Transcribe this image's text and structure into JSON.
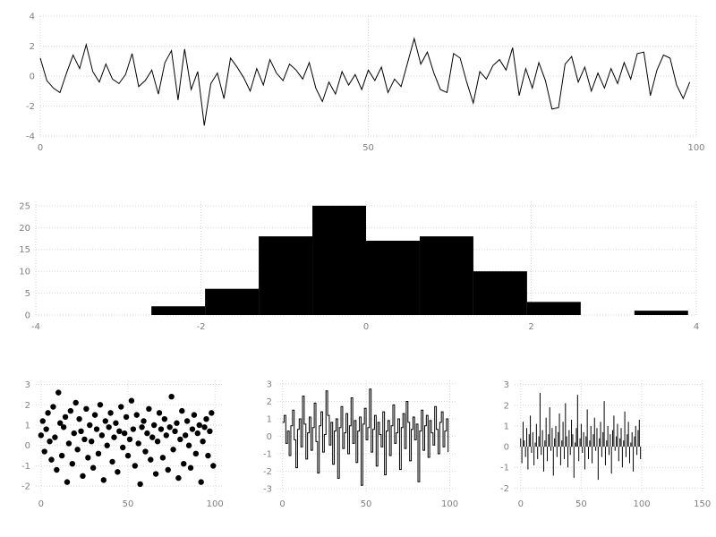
{
  "figure": {
    "background": "#ffffff",
    "grid_color": "#d6d6d6",
    "tick_color": "#7f7f7f",
    "series_color": "#000000"
  },
  "chart_data": [
    {
      "id": "timeseries",
      "type": "line",
      "title": "",
      "xlabel": "",
      "ylabel": "",
      "x_mode": "index",
      "xlim": [
        0,
        100
      ],
      "ylim": [
        -4,
        4
      ],
      "xticks": [
        0,
        50,
        100
      ],
      "yticks": [
        -4,
        -2,
        0,
        2,
        4
      ],
      "grid": true,
      "values": [
        1.2,
        -0.3,
        -0.8,
        -1.1,
        0.2,
        1.4,
        0.5,
        2.1,
        0.3,
        -0.4,
        0.8,
        -0.2,
        -0.5,
        0.1,
        1.5,
        -0.7,
        -0.3,
        0.4,
        -1.2,
        0.9,
        1.7,
        -1.6,
        1.8,
        -0.9,
        0.3,
        -3.3,
        -0.5,
        0.2,
        -1.5,
        1.2,
        0.6,
        -0.1,
        -1.0,
        0.5,
        -0.6,
        1.1,
        0.2,
        -0.3,
        0.8,
        0.4,
        -0.2,
        0.9,
        -0.8,
        -1.7,
        -0.4,
        -1.2,
        0.3,
        -0.6,
        0.1,
        -0.9,
        0.4,
        -0.3,
        0.6,
        -1.1,
        -0.2,
        -0.7,
        0.9,
        2.5,
        0.8,
        1.6,
        0.2,
        -0.9,
        -1.1,
        1.5,
        1.2,
        -0.4,
        -1.8,
        0.3,
        -0.2,
        0.7,
        1.1,
        0.4,
        1.9,
        -1.3,
        0.5,
        -0.8,
        0.9,
        -0.3,
        -2.2,
        -2.1,
        0.8,
        1.3,
        -0.4,
        0.6,
        -1.0,
        0.2,
        -0.8,
        0.5,
        -0.5,
        0.9,
        -0.2,
        1.5,
        1.6,
        -1.3,
        0.4,
        1.4,
        1.2,
        -0.6,
        -1.5,
        -0.4
      ]
    },
    {
      "id": "histogram",
      "type": "bar",
      "title": "",
      "xlabel": "",
      "ylabel": "",
      "xlim": [
        -4,
        4
      ],
      "ylim": [
        0,
        26
      ],
      "xticks": [
        -4,
        -2,
        0,
        2,
        4
      ],
      "yticks": [
        0,
        5,
        10,
        15,
        20,
        25
      ],
      "grid": true,
      "bin_edges": [
        -2.6,
        -1.95,
        -1.3,
        -0.65,
        0,
        0.65,
        1.3,
        1.95,
        2.6,
        3.25,
        3.9
      ],
      "counts": [
        2,
        6,
        18,
        25,
        17,
        18,
        10,
        3,
        0,
        1
      ]
    },
    {
      "id": "scatter",
      "type": "scatter",
      "title": "",
      "xlabel": "",
      "ylabel": "",
      "x_mode": "index",
      "xlim": [
        -3,
        104
      ],
      "ylim": [
        -2.3,
        3.2
      ],
      "xticks": [
        0,
        50,
        100
      ],
      "yticks": [
        -2,
        -1,
        0,
        1,
        2,
        3
      ],
      "grid": true,
      "values": [
        0.5,
        1.2,
        -0.3,
        0.8,
        1.6,
        0.2,
        -0.7,
        1.9,
        0.4,
        -1.2,
        2.6,
        1.1,
        -0.5,
        0.9,
        1.4,
        -1.8,
        0.1,
        1.7,
        -0.9,
        0.6,
        2.1,
        -0.2,
        1.3,
        0.7,
        -1.5,
        0.3,
        1.8,
        -0.6,
        1.0,
        0.2,
        -1.1,
        1.5,
        0.8,
        -0.4,
        2.0,
        0.5,
        -1.7,
        1.2,
        0.0,
        0.9,
        1.6,
        -0.8,
        0.4,
        1.1,
        -1.3,
        0.7,
        1.9,
        -0.1,
        0.6,
        1.4,
        -0.5,
        0.3,
        2.2,
        0.8,
        -1.0,
        1.5,
        0.1,
        -1.9,
        0.9,
        1.2,
        -0.3,
        0.6,
        1.8,
        -0.7,
        0.4,
        1.0,
        -1.4,
        0.2,
        1.6,
        0.8,
        -0.6,
        1.3,
        0.5,
        -1.2,
        0.9,
        2.4,
        -0.2,
        0.7,
        1.1,
        -1.6,
        0.3,
        1.7,
        -0.9,
        0.5,
        1.2,
        0.0,
        -1.1,
        0.8,
        1.5,
        -0.4,
        0.6,
        1.0,
        -1.8,
        0.2,
        0.9,
        1.3,
        -0.5,
        0.7,
        1.6,
        -1.0
      ]
    },
    {
      "id": "step",
      "type": "step",
      "title": "",
      "xlabel": "",
      "ylabel": "",
      "x_mode": "index",
      "xlim": [
        -3,
        104
      ],
      "ylim": [
        -3.2,
        3.2
      ],
      "xticks": [
        0,
        50,
        100
      ],
      "yticks": [
        -3,
        -2,
        -1,
        0,
        1,
        2,
        3
      ],
      "grid": true,
      "values": [
        0.8,
        1.2,
        -0.4,
        0.3,
        -1.1,
        0.6,
        1.5,
        -0.2,
        -1.8,
        0.4,
        1.0,
        -0.6,
        2.3,
        0.7,
        -1.3,
        0.2,
        1.1,
        -0.8,
        0.5,
        1.9,
        -0.3,
        -2.1,
        0.6,
        1.4,
        -0.9,
        0.1,
        2.6,
        1.2,
        -0.5,
        0.8,
        -1.6,
        0.3,
        1.0,
        -2.4,
        0.5,
        1.7,
        -0.7,
        0.2,
        1.3,
        -1.0,
        0.6,
        2.2,
        -0.4,
        0.9,
        -1.5,
        0.3,
        1.1,
        -2.8,
        0.7,
        1.6,
        -0.2,
        0.5,
        2.7,
        -0.9,
        0.4,
        1.2,
        -1.7,
        0.8,
        0.1,
        -0.6,
        1.4,
        -2.2,
        0.3,
        0.9,
        -1.1,
        0.6,
        1.8,
        -0.4,
        0.2,
        1.0,
        -1.9,
        0.5,
        1.3,
        -0.7,
        2.0,
        0.8,
        -1.4,
        0.4,
        1.1,
        -0.2,
        0.7,
        -2.6,
        0.3,
        1.5,
        -0.8,
        0.6,
        1.2,
        -1.2,
        0.9,
        0.2,
        -0.5,
        1.7,
        0.4,
        -1.0,
        0.8,
        1.4,
        -0.6,
        0.3,
        1.0,
        -0.9
      ]
    },
    {
      "id": "stem",
      "type": "stem",
      "title": "",
      "xlabel": "",
      "ylabel": "",
      "x_mode": "index",
      "xlim": [
        -5,
        151
      ],
      "ylim": [
        -2.2,
        3.2
      ],
      "xticks": [
        0,
        50,
        100,
        150
      ],
      "yticks": [
        -2,
        -1,
        0,
        1,
        2,
        3
      ],
      "grid": true,
      "values": [
        0.4,
        -0.8,
        1.2,
        0.3,
        -0.5,
        0.9,
        -1.1,
        0.6,
        1.5,
        -0.3,
        0.7,
        -0.9,
        0.2,
        1.1,
        -0.6,
        0.5,
        2.6,
        -0.4,
        0.8,
        -1.2,
        0.3,
        1.4,
        -0.7,
        0.6,
        1.9,
        -0.2,
        0.9,
        -1.4,
        0.4,
        1.0,
        -0.5,
        0.7,
        1.6,
        -0.9,
        0.3,
        1.2,
        -0.6,
        2.1,
        0.5,
        -1.0,
        0.8,
        -0.4,
        1.3,
        0.6,
        -1.5,
        0.2,
        0.9,
        2.5,
        -0.7,
        0.4,
        1.1,
        -0.3,
        0.7,
        -1.1,
        0.5,
        1.8,
        -0.6,
        0.3,
        1.0,
        -0.8,
        0.6,
        1.4,
        -0.2,
        0.9,
        -1.6,
        0.4,
        1.2,
        -0.5,
        0.7,
        2.2,
        -0.9,
        0.3,
        1.0,
        -0.4,
        0.6,
        -1.3,
        0.8,
        1.5,
        -0.2,
        0.5,
        1.1,
        -0.7,
        0.4,
        0.9,
        -1.0,
        0.3,
        1.7,
        -0.5,
        0.6,
        1.2,
        -0.8,
        0.2,
        0.7,
        -1.2,
        0.5,
        1.0,
        -0.4,
        0.8,
        1.3,
        -0.6
      ]
    }
  ]
}
